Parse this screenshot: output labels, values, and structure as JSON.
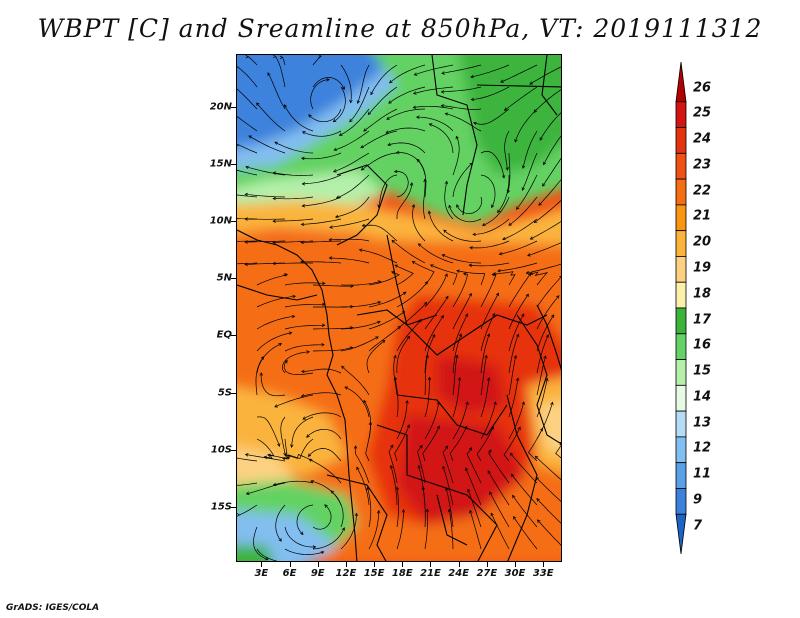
{
  "title": "WBPT [C] and Sreamline at 850hPa, VT: 2019111312",
  "credit": "GrADS: IGES/COLA",
  "map": {
    "lat_labels": [
      "20N",
      "15N",
      "10N",
      "5N",
      "EQ",
      "5S",
      "10S",
      "15S"
    ],
    "lat_values": [
      20,
      15,
      10,
      5,
      0,
      -5,
      -10,
      -15
    ],
    "lon_labels": [
      "3E",
      "6E",
      "9E",
      "12E",
      "15E",
      "18E",
      "21E",
      "24E",
      "27E",
      "30E",
      "33E"
    ],
    "lon_values": [
      3,
      6,
      9,
      12,
      15,
      18,
      21,
      24,
      27,
      30,
      33
    ],
    "lon_range": [
      0.3,
      35
    ],
    "lat_range": [
      -19.8,
      24.6
    ],
    "land_line_color": "#000000",
    "streamline_color": "#000000"
  },
  "colorbar": {
    "labels": [
      "26",
      "25",
      "24",
      "23",
      "22",
      "21",
      "20",
      "19",
      "18",
      "17",
      "16",
      "15",
      "14",
      "13",
      "12",
      "11",
      "9",
      "7"
    ],
    "colors": [
      "#b40000",
      "#d21414",
      "#e6320f",
      "#f05014",
      "#f56e14",
      "#f89614",
      "#fab43c",
      "#fcd282",
      "#fcf0aa",
      "#3cb43c",
      "#64d264",
      "#b4f0aa",
      "#e6fae6",
      "#b4dcf5",
      "#82bef0",
      "#5aa0e6",
      "#3c82dc",
      "#1e64c8"
    ]
  }
}
